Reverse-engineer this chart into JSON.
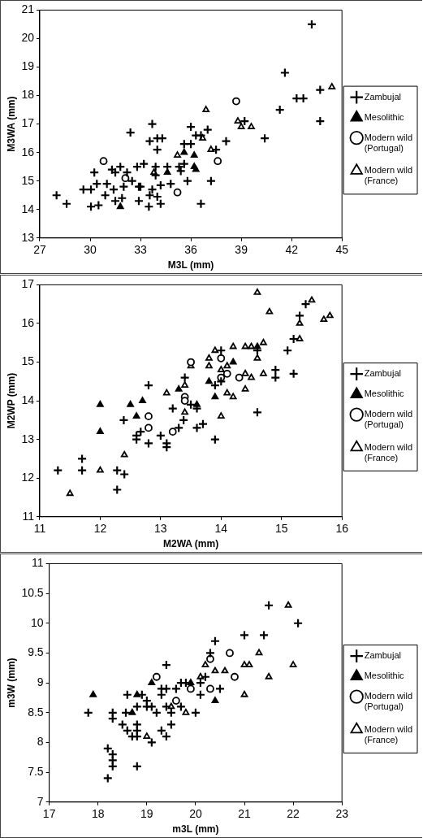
{
  "chart_data": [
    {
      "type": "scatter",
      "xlabel": "M3L (mm)",
      "ylabel": "M3WA (mm)",
      "xlim": [
        27,
        45
      ],
      "xticks": [
        27,
        30,
        33,
        36,
        39,
        42,
        45
      ],
      "ylim": [
        13,
        21
      ],
      "yticks": [
        13,
        14,
        15,
        16,
        17,
        18,
        19,
        20,
        21
      ],
      "grid": false,
      "legend": "right",
      "series": [
        {
          "name": "Zambujal",
          "color": "#000000",
          "marker": "cross",
          "x": [
            28.0,
            28.6,
            30.05,
            30.5,
            30.25,
            30.4,
            29.6,
            30.05,
            31.0,
            30.9,
            31.3,
            31.5,
            31.4,
            31.5,
            31.8,
            32.2,
            32.4,
            31.9,
            32.8,
            33.2,
            32.9,
            32.9,
            33.5,
            33.7,
            33.55,
            34.0,
            34.3,
            34.0,
            33.9,
            33.9,
            33.7,
            33.55,
            34.0,
            34.2,
            34.6,
            34.8,
            34.2,
            35.3,
            35.4,
            35.6,
            35.6,
            36.0,
            35.8,
            36.0,
            36.3,
            36.6,
            37.0,
            37.5,
            37.2,
            36.6,
            38.1,
            39.2,
            40.4,
            41.3,
            41.6,
            42.3,
            42.7,
            43.2,
            43.7,
            43.7,
            32.5,
            33.0,
            32.0
          ],
          "values": [
            14.5,
            14.2,
            14.1,
            14.15,
            15.3,
            14.9,
            14.7,
            14.7,
            14.9,
            14.5,
            15.4,
            15.3,
            14.7,
            14.3,
            15.5,
            15.3,
            16.7,
            14.4,
            15.5,
            15.6,
            14.3,
            14.8,
            14.1,
            17.0,
            16.4,
            16.5,
            16.5,
            16.1,
            15.5,
            15.2,
            14.7,
            14.5,
            14.45,
            14.2,
            15.5,
            14.9,
            14.85,
            15.5,
            15.35,
            15.6,
            16.3,
            16.3,
            15.0,
            16.9,
            16.6,
            16.6,
            16.8,
            16.1,
            15.0,
            14.2,
            16.4,
            17.1,
            16.5,
            17.5,
            18.8,
            17.9,
            17.9,
            20.5,
            18.2,
            17.1,
            15.0,
            14.8,
            14.8
          ]
        },
        {
          "name": "Mesolithic",
          "color": "#000000",
          "marker": "triangle",
          "x": [
            34.6,
            35.6,
            36.2,
            36.2,
            36.3,
            31.8
          ],
          "values": [
            15.3,
            16.0,
            15.9,
            15.5,
            15.4,
            14.1
          ]
        },
        {
          "name": "Modern wild (Portugal)",
          "color": "#ffffff",
          "marker": "circle",
          "x": [
            30.8,
            32.1,
            35.2,
            37.6,
            38.7
          ],
          "values": [
            15.7,
            15.1,
            14.6,
            15.7,
            17.8
          ]
        },
        {
          "name": "Modern wild (France)",
          "color": "#ffffff",
          "marker": "triangle",
          "x": [
            35.2,
            36.9,
            37.2,
            38.8,
            39.0,
            39.6,
            44.4,
            33.8,
            36.7
          ],
          "values": [
            15.9,
            17.5,
            16.1,
            17.1,
            16.9,
            16.9,
            18.3,
            15.3,
            16.5
          ]
        }
      ]
    },
    {
      "type": "scatter",
      "xlabel": "M2WA (mm)",
      "ylabel": "M2WP (mm)",
      "xlim": [
        11,
        16
      ],
      "xticks": [
        11,
        12,
        13,
        14,
        15,
        16
      ],
      "ylim": [
        11,
        17
      ],
      "yticks": [
        11,
        12,
        13,
        14,
        15,
        16,
        17
      ],
      "grid": false,
      "legend": "right",
      "series": [
        {
          "name": "Zambujal",
          "color": "#000000",
          "marker": "cross",
          "x": [
            11.3,
            11.7,
            11.7,
            12.28,
            12.4,
            12.28,
            12.39,
            12.6,
            12.6,
            12.67,
            12.8,
            12.8,
            13.0,
            13.1,
            13.1,
            13.2,
            13.3,
            13.38,
            13.4,
            13.5,
            13.6,
            13.6,
            13.7,
            13.9,
            13.9,
            14.0,
            14.0,
            14.6,
            14.6,
            14.9,
            14.9,
            15.1,
            15.2,
            15.2,
            15.3,
            15.4
          ],
          "values": [
            12.2,
            12.5,
            12.2,
            12.2,
            12.1,
            11.7,
            13.5,
            13.1,
            13.0,
            13.2,
            12.9,
            14.4,
            13.1,
            12.9,
            12.8,
            13.8,
            13.3,
            13.5,
            14.6,
            13.9,
            13.8,
            13.3,
            13.4,
            13.0,
            14.4,
            15.3,
            14.5,
            13.7,
            15.3,
            14.8,
            14.6,
            15.3,
            14.7,
            15.6,
            16.2,
            16.5
          ]
        },
        {
          "name": "Mesolithic",
          "color": "#000000",
          "marker": "triangle",
          "x": [
            12.0,
            12.0,
            12.5,
            12.6,
            12.7,
            13.3,
            13.6,
            13.8,
            13.9,
            14.2,
            14.6
          ],
          "values": [
            13.9,
            13.2,
            13.9,
            13.6,
            14.0,
            14.3,
            13.9,
            14.5,
            14.1,
            15.0,
            15.4
          ]
        },
        {
          "name": "Modern wild (Portugal)",
          "color": "#ffffff",
          "marker": "circle",
          "x": [
            12.8,
            12.8,
            13.2,
            13.4,
            13.4,
            13.5,
            14.0,
            14.0,
            14.1,
            14.3
          ],
          "values": [
            13.6,
            13.3,
            13.2,
            14.1,
            14.0,
            15.0,
            15.1,
            14.6,
            14.7,
            14.6
          ]
        },
        {
          "name": "Modern wild (France)",
          "color": "#ffffff",
          "marker": "triangle",
          "x": [
            11.5,
            12.0,
            12.4,
            13.1,
            13.4,
            13.4,
            13.5,
            13.8,
            13.8,
            13.9,
            14.0,
            14.1,
            14.1,
            14.2,
            14.2,
            14.0,
            14.4,
            14.4,
            14.4,
            14.5,
            14.5,
            14.7,
            14.7,
            14.6,
            14.6,
            14.8,
            15.3,
            15.3,
            15.5,
            15.7,
            15.8
          ],
          "values": [
            11.6,
            12.2,
            12.6,
            14.2,
            14.4,
            13.7,
            14.9,
            15.1,
            14.9,
            15.3,
            14.8,
            14.9,
            14.2,
            14.1,
            15.4,
            13.6,
            14.3,
            14.7,
            15.4,
            14.6,
            15.4,
            15.5,
            14.7,
            15.1,
            16.8,
            16.3,
            16.0,
            15.6,
            16.6,
            16.1,
            16.2
          ]
        }
      ]
    },
    {
      "type": "scatter",
      "xlabel": "m3L (mm)",
      "ylabel": "m3W (mm)",
      "xlim": [
        17,
        23
      ],
      "xticks": [
        17,
        18,
        19,
        20,
        21,
        22,
        23
      ],
      "ylim": [
        7,
        11
      ],
      "yticks": [
        7,
        7.5,
        8,
        8.5,
        9,
        9.5,
        10,
        10.5,
        11
      ],
      "grid": false,
      "legend": "right",
      "series": [
        {
          "name": "Zambujal",
          "color": "#000000",
          "marker": "cross",
          "x": [
            17.8,
            18.2,
            18.2,
            18.3,
            18.3,
            18.3,
            18.3,
            18.3,
            18.6,
            18.57,
            18.5,
            18.6,
            18.7,
            18.8,
            18.8,
            18.8,
            18.8,
            18.8,
            18.9,
            19.0,
            19.0,
            19.1,
            19.2,
            19.1,
            19.3,
            19.4,
            19.3,
            19.3,
            19.4,
            19.4,
            19.4,
            19.5,
            19.5,
            19.6,
            19.7,
            19.7,
            19.8,
            20.0,
            20.1,
            20.1,
            20.2,
            20.3,
            20.4,
            20.5,
            21.0,
            21.4,
            21.5,
            22.1
          ],
          "values": [
            8.5,
            7.9,
            7.4,
            8.5,
            8.4,
            7.8,
            7.7,
            7.6,
            8.8,
            8.5,
            8.3,
            8.2,
            8.1,
            8.3,
            8.2,
            8.1,
            7.6,
            8.6,
            8.8,
            8.7,
            8.6,
            8.6,
            8.5,
            8.0,
            8.2,
            8.1,
            8.9,
            8.8,
            9.3,
            8.9,
            8.6,
            8.5,
            8.3,
            8.9,
            9.0,
            8.6,
            9.0,
            8.5,
            9.0,
            8.8,
            9.1,
            9.5,
            9.7,
            8.9,
            9.8,
            9.8,
            10.3,
            10.0
          ]
        },
        {
          "name": "Mesolithic",
          "color": "#000000",
          "marker": "triangle",
          "x": [
            17.9,
            18.7,
            18.8,
            19.1,
            19.9,
            20.4
          ],
          "values": [
            8.8,
            8.5,
            8.8,
            9.0,
            9.0,
            8.7
          ]
        },
        {
          "name": "Modern wild (Portugal)",
          "color": "#ffffff",
          "marker": "circle",
          "x": [
            19.2,
            19.6,
            19.9,
            20.3,
            20.3,
            20.7,
            20.8
          ],
          "values": [
            9.1,
            8.7,
            8.9,
            8.9,
            9.4,
            9.5,
            9.1
          ]
        },
        {
          "name": "Modern wild (France)",
          "color": "#ffffff",
          "marker": "triangle",
          "x": [
            19.0,
            19.5,
            19.8,
            20.1,
            20.2,
            20.4,
            20.6,
            21.0,
            21.1,
            21.0,
            21.3,
            21.5,
            21.9,
            22.0
          ],
          "values": [
            8.1,
            8.6,
            8.5,
            9.1,
            9.3,
            9.2,
            9.2,
            9.3,
            9.3,
            8.8,
            9.5,
            9.1,
            10.3,
            9.3
          ]
        }
      ]
    }
  ]
}
